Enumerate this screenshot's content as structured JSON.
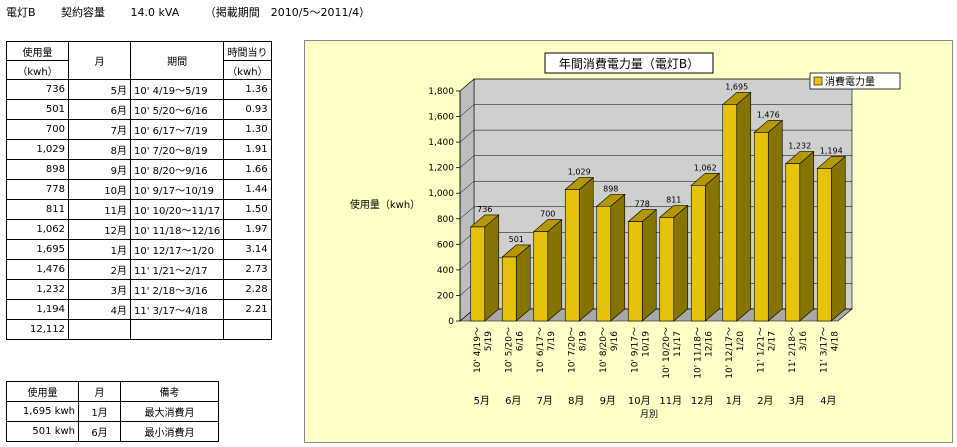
{
  "header": {
    "meter": "電灯B",
    "contract_label": "契約容量",
    "contract_value": "14.0 kVA",
    "period": "（掲載期間　2010/5～2011/4）"
  },
  "table": {
    "headers": {
      "usage": "使用量",
      "usage_unit": "（kwh）",
      "month": "月",
      "period": "期間",
      "hourly": "時間当り",
      "hourly_unit": "（kwh）"
    },
    "rows": [
      {
        "usage": "736",
        "month": "5月",
        "period": "10' 4/19～5/19",
        "hourly": "1.36"
      },
      {
        "usage": "501",
        "month": "6月",
        "period": "10' 5/20～6/16",
        "hourly": "0.93"
      },
      {
        "usage": "700",
        "month": "7月",
        "period": "10' 6/17～7/19",
        "hourly": "1.30"
      },
      {
        "usage": "1,029",
        "month": "8月",
        "period": "10' 7/20～8/19",
        "hourly": "1.91"
      },
      {
        "usage": "898",
        "month": "9月",
        "period": "10' 8/20～9/16",
        "hourly": "1.66"
      },
      {
        "usage": "778",
        "month": "10月",
        "period": "10' 9/17～10/19",
        "hourly": "1.44"
      },
      {
        "usage": "811",
        "month": "11月",
        "period": "10' 10/20～11/17",
        "hourly": "1.50"
      },
      {
        "usage": "1,062",
        "month": "12月",
        "period": "10' 11/18～12/16",
        "hourly": "1.97"
      },
      {
        "usage": "1,695",
        "month": "1月",
        "period": "10' 12/17～1/20",
        "hourly": "3.14"
      },
      {
        "usage": "1,476",
        "month": "2月",
        "period": "11' 1/21～2/17",
        "hourly": "2.73"
      },
      {
        "usage": "1,232",
        "month": "3月",
        "period": "11' 2/18～3/16",
        "hourly": "2.28"
      },
      {
        "usage": "1,194",
        "month": "4月",
        "period": "11' 3/17～4/18",
        "hourly": "2.21"
      }
    ],
    "total": "12,112"
  },
  "summary": {
    "headers": {
      "usage": "使用量",
      "month": "月",
      "note": "備考"
    },
    "rows": [
      {
        "usage": "1,695 kwh",
        "month": "1月",
        "note": "最大消費月"
      },
      {
        "usage": "501 kwh",
        "month": "6月",
        "note": "最小消費月"
      }
    ]
  },
  "colors": {
    "bar_front": "#e6c20a",
    "bar_side": "#857400",
    "bar_top": "#b39800",
    "chart_bg": "#ffffc8",
    "wall": "#cfcfcf"
  },
  "chart_data": {
    "type": "bar",
    "title": "年間消費電力量（電灯B）",
    "ylabel": "使用量（kwh）",
    "xlabel": "月別",
    "legend": "消費電力量",
    "legend_position": "top-right",
    "ylim": [
      0,
      1800
    ],
    "yticks": [
      "0",
      "200",
      "400",
      "600",
      "800",
      "1,000",
      "1,200",
      "1,400",
      "1,600",
      "1,800"
    ],
    "categories": [
      "10' 4/19～5/19",
      "10' 5/20～6/16",
      "10' 6/17～7/19",
      "10' 7/20～8/19",
      "10' 8/20～9/16",
      "10' 9/17～10/19",
      "10' 10/20～11/17",
      "10' 11/18～12/16",
      "10' 12/17～1/20",
      "11' 1/21～2/17",
      "11' 2/18～3/16",
      "11' 3/17～4/18"
    ],
    "months": [
      "5月",
      "6月",
      "7月",
      "8月",
      "9月",
      "10月",
      "11月",
      "12月",
      "1月",
      "2月",
      "3月",
      "4月"
    ],
    "values": [
      736,
      501,
      700,
      1029,
      898,
      778,
      811,
      1062,
      1695,
      1476,
      1232,
      1194
    ],
    "value_labels": [
      "736",
      "501",
      "700",
      "1,029",
      "898",
      "778",
      "811",
      "1,062",
      "1,695",
      "1,476",
      "1,232",
      "1,194"
    ]
  }
}
